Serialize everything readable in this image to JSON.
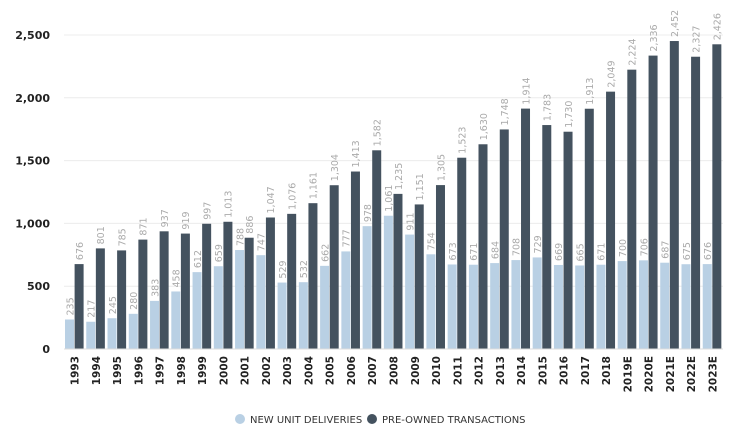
{
  "chart_data": {
    "type": "bar",
    "categories": [
      "1993",
      "1994",
      "1995",
      "1996",
      "1997",
      "1998",
      "1999",
      "2000",
      "2001",
      "2002",
      "2003",
      "2004",
      "2005",
      "2006",
      "2007",
      "2008",
      "2009",
      "2010",
      "2011",
      "2012",
      "2013",
      "2014",
      "2015",
      "2016",
      "2017",
      "2018",
      "2019E",
      "2020E",
      "2021E",
      "2022E",
      "2023E"
    ],
    "series": [
      {
        "name": "NEW UNIT DELIVERIES",
        "color": "#b9d0e4",
        "values": [
          235,
          217,
          245,
          280,
          383,
          458,
          612,
          659,
          788,
          747,
          529,
          532,
          662,
          777,
          978,
          1061,
          911,
          754,
          673,
          671,
          684,
          708,
          729,
          669,
          665,
          671,
          700,
          706,
          687,
          675,
          676
        ]
      },
      {
        "name": "PRE-OWNED TRANSACTIONS",
        "color": "#44525f",
        "values": [
          676,
          801,
          785,
          871,
          937,
          919,
          997,
          1013,
          886,
          1047,
          1076,
          1161,
          1304,
          1413,
          1582,
          1235,
          1151,
          1305,
          1523,
          1630,
          1748,
          1914,
          1783,
          1730,
          1913,
          2049,
          2224,
          2336,
          2452,
          2327,
          2426
        ]
      }
    ],
    "yticks": [
      "0",
      "500",
      "1,000",
      "1,500",
      "2,000",
      "2,500"
    ],
    "ylim": [
      0,
      2500
    ],
    "grid": true,
    "legend": "bottom-center",
    "title": "",
    "xlabel": "",
    "ylabel": ""
  }
}
